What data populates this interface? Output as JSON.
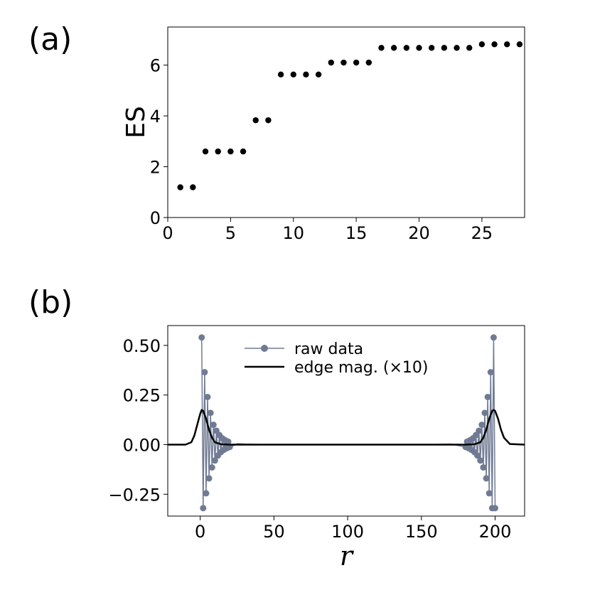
{
  "figure": {
    "panel_a_label": "(a)",
    "panel_b_label": "(b)"
  },
  "chart_data": [
    {
      "type": "scatter",
      "panel": "(a)",
      "xlabel": "",
      "ylabel": "ES",
      "xlim": [
        0,
        28.4
      ],
      "ylim": [
        0,
        7.5
      ],
      "xticks": [
        0,
        5,
        10,
        15,
        20,
        25
      ],
      "yticks": [
        0,
        2,
        4,
        6
      ],
      "grid": false,
      "marker_color": "#000000",
      "x": [
        1,
        2,
        3,
        4,
        5,
        6,
        7,
        8,
        9,
        10,
        11,
        12,
        13,
        14,
        15,
        16,
        17,
        18,
        19,
        20,
        21,
        22,
        23,
        24,
        25,
        26,
        27,
        28
      ],
      "y": [
        1.19,
        1.19,
        2.6,
        2.6,
        2.6,
        2.6,
        3.83,
        3.83,
        5.63,
        5.63,
        5.63,
        5.63,
        6.1,
        6.1,
        6.1,
        6.1,
        6.68,
        6.68,
        6.68,
        6.68,
        6.68,
        6.68,
        6.68,
        6.68,
        6.82,
        6.82,
        6.82,
        6.82
      ]
    },
    {
      "type": "line",
      "panel": "(b)",
      "xlabel": "r",
      "ylabel": "",
      "xlim": [
        -22,
        220
      ],
      "ylim": [
        -0.36,
        0.6
      ],
      "xticks": [
        0,
        50,
        100,
        150,
        200
      ],
      "yticks": [
        -0.25,
        0.0,
        0.25,
        0.5
      ],
      "ytick_labels": [
        "−0.25",
        "0.00",
        "0.25",
        "0.50"
      ],
      "grid": false,
      "legend_position": "top-center",
      "series": [
        {
          "name": "raw data",
          "color": "#707b93",
          "style": "line-with-markers",
          "x": [
            1,
            2,
            3,
            4,
            5,
            6,
            7,
            8,
            9,
            10,
            11,
            12,
            13,
            14,
            15,
            16,
            17,
            18,
            19,
            20,
            22,
            25,
            30,
            40,
            60,
            80,
            100,
            120,
            140,
            160,
            170,
            180,
            181,
            182,
            183,
            184,
            185,
            186,
            187,
            188,
            189,
            190,
            191,
            192,
            193,
            194,
            195,
            196,
            197,
            198,
            199,
            200
          ],
          "y": [
            0.54,
            -0.32,
            0.365,
            -0.245,
            0.24,
            -0.17,
            0.16,
            -0.115,
            0.1,
            -0.08,
            0.07,
            -0.055,
            0.048,
            -0.038,
            0.032,
            -0.026,
            0.022,
            -0.018,
            0.015,
            -0.012,
            -0.008,
            0.005,
            0.003,
            0.001,
            0.0,
            0.0,
            0.0,
            0.0,
            0.0,
            0.001,
            0.003,
            -0.012,
            0.015,
            -0.018,
            0.022,
            -0.026,
            0.032,
            -0.038,
            0.048,
            -0.055,
            0.07,
            -0.08,
            0.1,
            -0.115,
            0.16,
            -0.17,
            0.24,
            -0.245,
            0.365,
            -0.32,
            0.54,
            -0.32
          ]
        },
        {
          "name": "edge mag. (×10)",
          "color": "#000000",
          "style": "line",
          "x": [
            -22,
            -10,
            -6,
            -4,
            -2,
            0,
            1,
            2,
            4,
            6,
            8,
            10,
            14,
            20,
            40,
            100,
            160,
            180,
            186,
            190,
            192,
            194,
            196,
            198,
            199,
            200,
            202,
            204,
            206,
            210,
            220
          ],
          "y": [
            0.0,
            0.0,
            0.012,
            0.045,
            0.1,
            0.155,
            0.175,
            0.17,
            0.13,
            0.075,
            0.035,
            0.012,
            0.002,
            0.0,
            0.0,
            0.0,
            0.0,
            0.0,
            0.002,
            0.012,
            0.035,
            0.075,
            0.13,
            0.17,
            0.175,
            0.17,
            0.13,
            0.075,
            0.035,
            0.003,
            0.0
          ]
        }
      ]
    }
  ]
}
